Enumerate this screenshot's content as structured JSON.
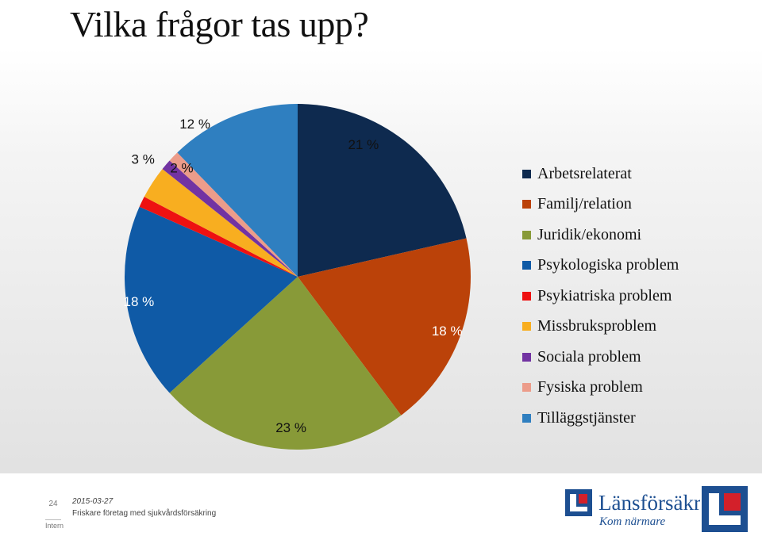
{
  "title": "Vilka frågor tas upp?",
  "chart_data": {
    "type": "pie",
    "start_angle_deg": 0,
    "direction": "clockwise",
    "slices": [
      {
        "name": "Arbetsrelaterat",
        "value": 21,
        "label": "21 %",
        "color": "#0e2a4f"
      },
      {
        "name": "Familj/relation",
        "value": 18,
        "label": "18 %",
        "color": "#bb4209"
      },
      {
        "name": "Juridik/ekonomi",
        "value": 23,
        "label": "23 %",
        "color": "#889a38"
      },
      {
        "name": "Psykologiska problem",
        "value": 18,
        "label": "18 %",
        "color": "#0f5aa6"
      },
      {
        "name": "Psykiatriska problem",
        "value": 1,
        "label": "",
        "color": "#ee1111"
      },
      {
        "name": "Missbruksproblem",
        "value": 3,
        "label": "3 %",
        "color": "#f8ae20"
      },
      {
        "name": "Sociala problem",
        "value": 1,
        "label": "",
        "color": "#7233a2"
      },
      {
        "name": "Fysiska problem",
        "value": 1,
        "label": "",
        "color": "#ec9c8a"
      },
      {
        "name": "Tilläggstjänster",
        "value": 12,
        "label": "12 %",
        "color": "#2f7fc0"
      }
    ],
    "extra_labels": [
      {
        "text": "2 %",
        "color": "#a7cf45"
      }
    ],
    "legend_position": "right"
  },
  "footer": {
    "page_number": "24",
    "classification": "Intern",
    "date": "2015-03-27",
    "subtitle": "Friskare företag med sjukvårdsförsäkring",
    "brand": "Länsförsäkringar",
    "tagline": "Kom närmare"
  },
  "brand_colors": {
    "blue": "#1d4f91",
    "red": "#d3202a"
  }
}
